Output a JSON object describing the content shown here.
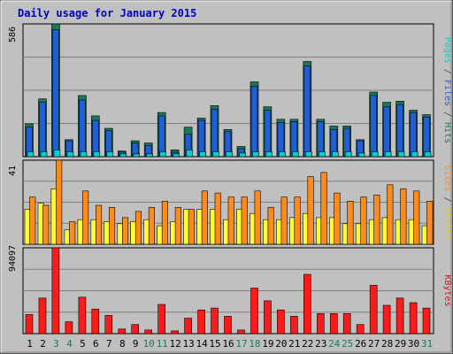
{
  "chart_data": {
    "type": "bar",
    "title": "Daily usage for January 2015",
    "categories": [
      "1",
      "2",
      "3",
      "4",
      "5",
      "6",
      "7",
      "8",
      "9",
      "10",
      "11",
      "12",
      "13",
      "14",
      "15",
      "16",
      "17",
      "18",
      "19",
      "20",
      "21",
      "22",
      "23",
      "24",
      "25",
      "26",
      "27",
      "28",
      "29",
      "30",
      "31"
    ],
    "weekend_days": [
      "3",
      "4",
      "10",
      "11",
      "17",
      "18",
      "24",
      "25",
      "31"
    ],
    "panels": [
      {
        "id": "top",
        "max_label": "586",
        "ylim": [
          0,
          586
        ],
        "legend": [
          {
            "text": "Pages",
            "color": "#00d0d0"
          },
          {
            "text": " / ",
            "color": "#444444"
          },
          {
            "text": "Files",
            "color": "#1f5fd6"
          },
          {
            "text": " / ",
            "color": "#444444"
          },
          {
            "text": "Hits",
            "color": "#1a7a52"
          }
        ],
        "series": [
          {
            "name": "Hits",
            "color": "#1a7a52",
            "values": [
              145,
              255,
              586,
              75,
              270,
              180,
              125,
              25,
              70,
              60,
              195,
              30,
              130,
              170,
              225,
              120,
              45,
              330,
              220,
              165,
              165,
              420,
              165,
              135,
              135,
              75,
              285,
              240,
              245,
              205,
              185
            ]
          },
          {
            "name": "Files",
            "color": "#1f5fd6",
            "values": [
              130,
              240,
              560,
              70,
              250,
              160,
              115,
              20,
              60,
              50,
              180,
              20,
              100,
              160,
              210,
              110,
              35,
              310,
              205,
              150,
              155,
              400,
              155,
              120,
              125,
              70,
              270,
              220,
              230,
              195,
              175
            ]
          },
          {
            "name": "Pages",
            "color": "#00d0d0",
            "values": [
              22,
              22,
              30,
              22,
              22,
              22,
              22,
              12,
              12,
              12,
              22,
              12,
              30,
              22,
              22,
              22,
              16,
              22,
              22,
              22,
              22,
              22,
              22,
              22,
              22,
              16,
              22,
              22,
              22,
              22,
              22
            ]
          }
        ]
      },
      {
        "id": "middle",
        "max_label": "41",
        "ylim": [
          0,
          41
        ],
        "legend": [
          {
            "text": "Sites",
            "color": "#ff8c1a"
          },
          {
            "text": " / ",
            "color": "#444444"
          },
          {
            "text": "Visits",
            "color": "#e0c800"
          }
        ],
        "series": [
          {
            "name": "Visits",
            "color": "#ffff33",
            "values": [
              17,
              20,
              27,
              7,
              12,
              12,
              11,
              10,
              11,
              12,
              9,
              11,
              17,
              17,
              17,
              12,
              17,
              15,
              12,
              12,
              13,
              15,
              13,
              13,
              10,
              10,
              12,
              13,
              12,
              12,
              9
            ]
          },
          {
            "name": "Sites",
            "color": "#ff8c1a",
            "values": [
              23,
              19,
              41,
              11,
              26,
              19,
              18,
              13,
              16,
              18,
              21,
              18,
              17,
              26,
              25,
              23,
              23,
              26,
              18,
              23,
              23,
              33,
              35,
              25,
              21,
              23,
              24,
              29,
              27,
              26,
              21
            ]
          }
        ]
      },
      {
        "id": "bottom",
        "max_label": "94097",
        "ylim": [
          0,
          94097
        ],
        "legend": [
          {
            "text": "KBytes",
            "color": "#e01010"
          }
        ],
        "series": [
          {
            "name": "KBytes",
            "color": "#ff1a1a",
            "values": [
              21000,
              39000,
              94097,
              13000,
              40000,
              27000,
              20000,
              5000,
              10000,
              4000,
              32000,
              3000,
              17000,
              26000,
              28000,
              19000,
              4000,
              50000,
              36000,
              26000,
              19000,
              65000,
              22000,
              22000,
              22000,
              10000,
              53000,
              31000,
              39000,
              34000,
              28000
            ]
          }
        ]
      }
    ],
    "colors": {
      "background": "#c0c0c0",
      "title": "#0000c0",
      "weekday_label": "#000000",
      "weekend_label": "#1a7a52"
    }
  }
}
